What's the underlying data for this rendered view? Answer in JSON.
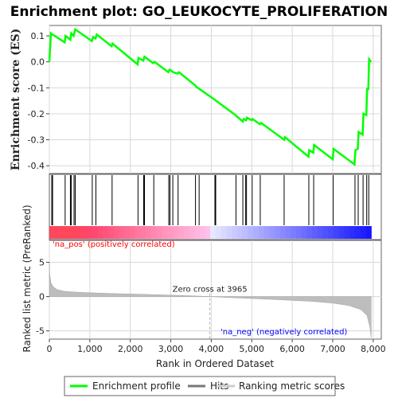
{
  "chart_data": {
    "type": "line",
    "title": "Enrichment plot: GO_LEUKOCYTE_PROLIFERATION",
    "top_panel": {
      "ylabel": "Enrichment score (ES)",
      "ylim": [
        -0.43,
        0.14
      ],
      "yticks": [
        "0.1",
        "0.0",
        "-0.1",
        "-0.2",
        "-0.3",
        "-0.4"
      ],
      "ytick_values": [
        0.1,
        0.0,
        -0.1,
        -0.2,
        -0.3,
        -0.4
      ],
      "grid": true,
      "series": [
        {
          "name": "Enrichment profile",
          "color": "#00ff00",
          "x": [
            0,
            40,
            80,
            380,
            400,
            520,
            540,
            600,
            640,
            1050,
            1080,
            1140,
            1170,
            1540,
            1560,
            2180,
            2200,
            2320,
            2350,
            2560,
            2600,
            2940,
            2970,
            3020,
            3060,
            3170,
            3200,
            3600,
            3620,
            4080,
            4120,
            4600,
            4630,
            4780,
            4800,
            4860,
            4880,
            5000,
            5020,
            5200,
            5230,
            5800,
            5820,
            6400,
            6420,
            6520,
            6540,
            7000,
            7020,
            7540,
            7560,
            7620,
            7640,
            7740,
            7760,
            7830,
            7850,
            7880,
            7900,
            7950
          ],
          "y": [
            0.0,
            0.11,
            0.105,
            0.075,
            0.1,
            0.085,
            0.11,
            0.1,
            0.125,
            0.08,
            0.095,
            0.09,
            0.105,
            0.06,
            0.07,
            -0.01,
            0.015,
            0.005,
            0.02,
            -0.005,
            0.0,
            -0.04,
            -0.03,
            -0.035,
            -0.04,
            -0.045,
            -0.04,
            -0.09,
            -0.095,
            -0.145,
            -0.15,
            -0.205,
            -0.21,
            -0.23,
            -0.22,
            -0.225,
            -0.215,
            -0.225,
            -0.22,
            -0.24,
            -0.235,
            -0.3,
            -0.29,
            -0.365,
            -0.34,
            -0.35,
            -0.32,
            -0.375,
            -0.335,
            -0.395,
            -0.34,
            -0.335,
            -0.27,
            -0.28,
            -0.2,
            -0.205,
            -0.105,
            -0.105,
            0.01,
            0.0
          ]
        }
      ]
    },
    "hits": [
      60,
      80,
      390,
      520,
      540,
      610,
      640,
      1060,
      1150,
      1550,
      2190,
      2330,
      2350,
      2580,
      2950,
      2980,
      3050,
      3180,
      3610,
      3700,
      4090,
      4110,
      4610,
      4780,
      4850,
      4870,
      5010,
      5210,
      5800,
      6410,
      6530,
      7010,
      7550,
      7630,
      7750,
      7840,
      7890
    ],
    "bottom_panel": {
      "ylabel": "Ranked list metric (PreRanked)",
      "xlabel": "Rank in Ordered Dataset",
      "yticks": [
        "5",
        "0",
        "-5"
      ],
      "ytick_values": [
        5,
        0,
        -5
      ],
      "ylim": [
        -6.2,
        8.2
      ],
      "xlim": [
        0,
        8200
      ],
      "xticks": [
        "0",
        "1,000",
        "2,000",
        "3,000",
        "4,000",
        "5,000",
        "6,000",
        "7,000",
        "8,000"
      ],
      "xtick_values": [
        0,
        1000,
        2000,
        3000,
        4000,
        5000,
        6000,
        7000,
        8000
      ],
      "zero_cross_label": "Zero cross at 3965",
      "zero_cross": 3965,
      "pos_label": "'na_pos' (positively correlated)",
      "neg_label": "'na_neg' (negatively correlated)",
      "pos_color": "#ff0000",
      "neg_color": "#0000ff",
      "metric_curve": {
        "x": [
          0,
          10,
          40,
          100,
          200,
          400,
          800,
          1500,
          2500,
          3500,
          3965,
          4500,
          5500,
          6500,
          7000,
          7400,
          7700,
          7850,
          7920,
          7950
        ],
        "y": [
          5.0,
          3.2,
          2.0,
          1.4,
          1.0,
          0.75,
          0.6,
          0.45,
          0.3,
          0.12,
          0.0,
          -0.15,
          -0.4,
          -0.7,
          -0.95,
          -1.3,
          -1.9,
          -2.8,
          -4.5,
          -6.0
        ]
      }
    },
    "total_ranks": 7950,
    "legend": [
      {
        "label": "Enrichment profile",
        "color": "#00ff00"
      },
      {
        "label": "Hits",
        "color": "#777777"
      },
      {
        "label": "Ranking metric scores",
        "color": "#cccccc"
      }
    ]
  }
}
